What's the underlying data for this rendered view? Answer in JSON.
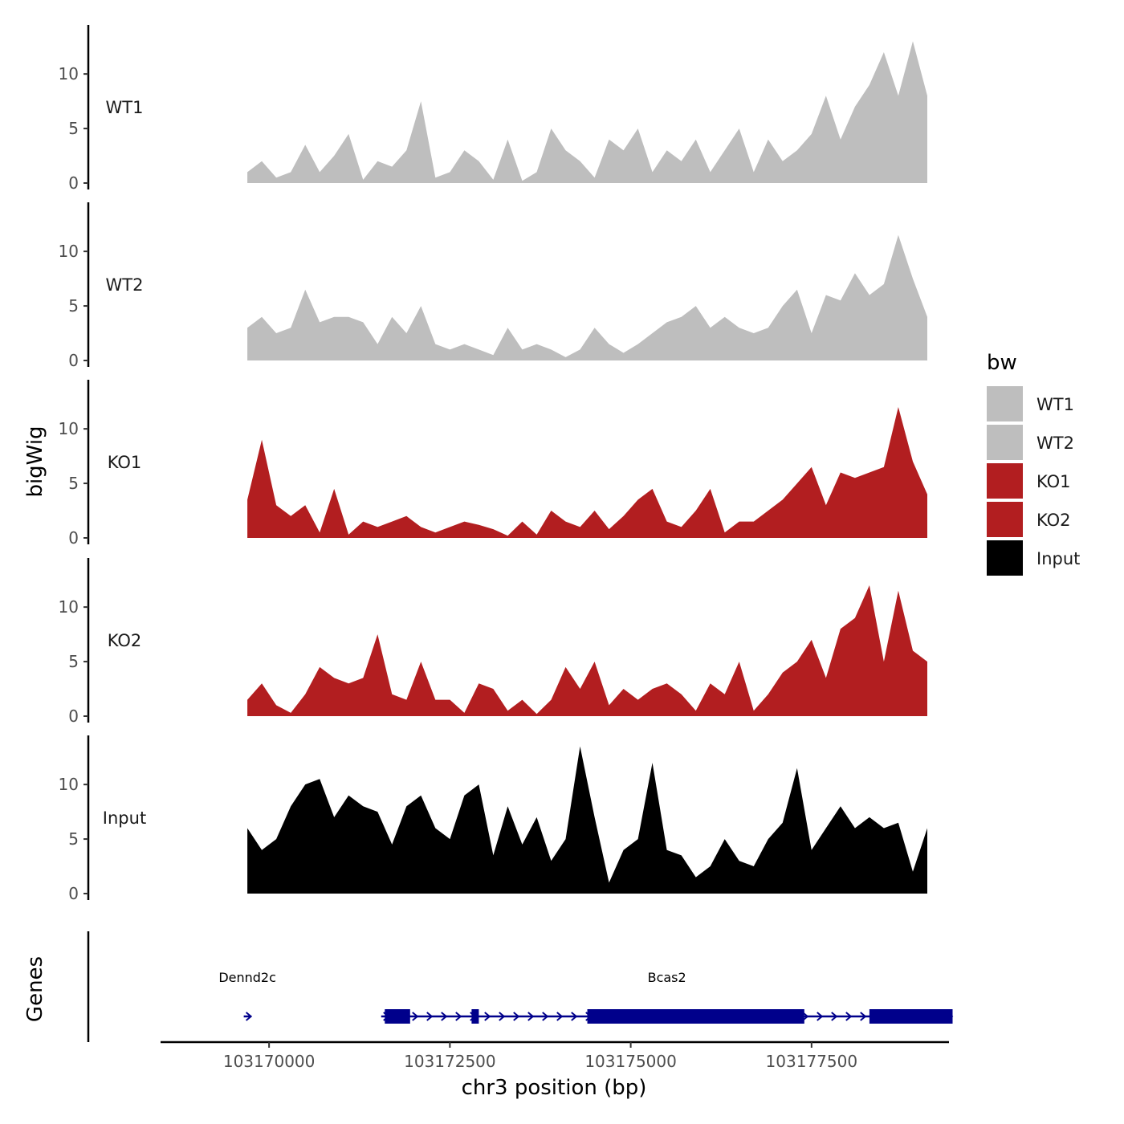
{
  "chart_data": {
    "type": "area",
    "title": "",
    "xlabel": "chr3 position (bp)",
    "ylabel": "bigWig",
    "genes_label": "Genes",
    "xlim": [
      103168500,
      103179400
    ],
    "ylim": [
      0,
      14.5
    ],
    "x_ticks": [
      103170000,
      103172500,
      103175000,
      103177500
    ],
    "x_tick_labels": [
      "103170000",
      "103172500",
      "103175000",
      "103177500"
    ],
    "y_ticks": [
      0,
      5,
      10
    ],
    "y_tick_labels": [
      "0",
      "5",
      "10"
    ],
    "legend": {
      "title": "bw",
      "entries": [
        {
          "label": "WT1",
          "color": "#bebebe"
        },
        {
          "label": "WT2",
          "color": "#bebebe"
        },
        {
          "label": "KO1",
          "color": "#b21e20"
        },
        {
          "label": "KO2",
          "color": "#b21e20"
        },
        {
          "label": "Input",
          "color": "#000000"
        }
      ]
    },
    "x": [
      103169700,
      103169900,
      103170100,
      103170300,
      103170500,
      103170700,
      103170900,
      103171100,
      103171300,
      103171500,
      103171700,
      103171900,
      103172100,
      103172300,
      103172500,
      103172700,
      103172900,
      103173100,
      103173300,
      103173500,
      103173700,
      103173900,
      103174100,
      103174300,
      103174500,
      103174700,
      103174900,
      103175100,
      103175300,
      103175500,
      103175700,
      103175900,
      103176100,
      103176300,
      103176500,
      103176700,
      103176900,
      103177100,
      103177300,
      103177500,
      103177700,
      103177900,
      103178100,
      103178300,
      103178500,
      103178700,
      103178900,
      103179100
    ],
    "series": [
      {
        "name": "WT1",
        "color": "#bebebe",
        "values": [
          1,
          2,
          0.5,
          1,
          3.5,
          1,
          2.5,
          4.5,
          0.3,
          2,
          1.5,
          3,
          7.5,
          0.5,
          1,
          3,
          2,
          0.3,
          4,
          0.2,
          1,
          5,
          3,
          2,
          0.5,
          4,
          3,
          5,
          1,
          3,
          2,
          4,
          1,
          3,
          5,
          1,
          4,
          2,
          3,
          4.5,
          8,
          4,
          7,
          9,
          12,
          8,
          13,
          8
        ]
      },
      {
        "name": "WT2",
        "color": "#bebebe",
        "values": [
          3,
          4,
          2.5,
          3,
          6.5,
          3.5,
          4,
          4,
          3.5,
          1.5,
          4,
          2.5,
          5,
          1.5,
          1,
          1.5,
          1,
          0.5,
          3,
          1,
          1.5,
          1,
          0.3,
          1,
          3,
          1.5,
          0.7,
          1.5,
          2.5,
          3.5,
          4,
          5,
          3,
          4,
          3,
          2.5,
          3,
          5,
          6.5,
          2.5,
          6,
          5.5,
          8,
          6,
          7,
          11.5,
          7.5,
          4
        ]
      },
      {
        "name": "KO1",
        "color": "#b21e20",
        "values": [
          3.5,
          9,
          3,
          2,
          3,
          0.5,
          4.5,
          0.3,
          1.5,
          1,
          1.5,
          2,
          1,
          0.5,
          1,
          1.5,
          1.2,
          0.8,
          0.2,
          1.5,
          0.3,
          2.5,
          1.5,
          1,
          2.5,
          0.8,
          2,
          3.5,
          4.5,
          1.5,
          1,
          2.5,
          4.5,
          0.5,
          1.5,
          1.5,
          2.5,
          3.5,
          5,
          6.5,
          3,
          6,
          5.5,
          6,
          6.5,
          12,
          7,
          4
        ]
      },
      {
        "name": "KO2",
        "color": "#b21e20",
        "values": [
          1.5,
          3,
          1,
          0.3,
          2,
          4.5,
          3.5,
          3,
          3.5,
          7.5,
          2,
          1.5,
          5,
          1.5,
          1.5,
          0.3,
          3,
          2.5,
          0.5,
          1.5,
          0.2,
          1.5,
          4.5,
          2.5,
          5,
          1,
          2.5,
          1.5,
          2.5,
          3,
          2,
          0.5,
          3,
          2,
          5,
          0.5,
          2,
          4,
          5,
          7,
          3.5,
          8,
          9,
          12,
          5,
          11.5,
          6,
          5
        ]
      },
      {
        "name": "Input",
        "color": "#000000",
        "values": [
          6,
          4,
          5,
          8,
          10,
          10.5,
          7,
          9,
          8,
          7.5,
          4.5,
          8,
          9,
          6,
          5,
          9,
          10,
          3.5,
          8,
          4.5,
          7,
          3,
          5,
          13.5,
          7,
          1,
          4,
          5,
          12,
          4,
          3.5,
          1.5,
          2.5,
          5,
          3,
          2.5,
          5,
          6.5,
          11.5,
          4,
          6,
          8,
          6,
          7,
          6,
          6.5,
          2,
          6
        ]
      }
    ],
    "genes": [
      {
        "name": "Dennd2c",
        "strand": "+",
        "start": 103169650,
        "end": 103169750,
        "exons": []
      },
      {
        "name": "Bcas2",
        "strand": "+",
        "start": 103171550,
        "end": 103179450,
        "exons": [
          [
            103171600,
            103171950
          ],
          [
            103172800,
            103172900
          ],
          [
            103174400,
            103177400
          ],
          [
            103178300,
            103179450
          ]
        ]
      }
    ]
  }
}
